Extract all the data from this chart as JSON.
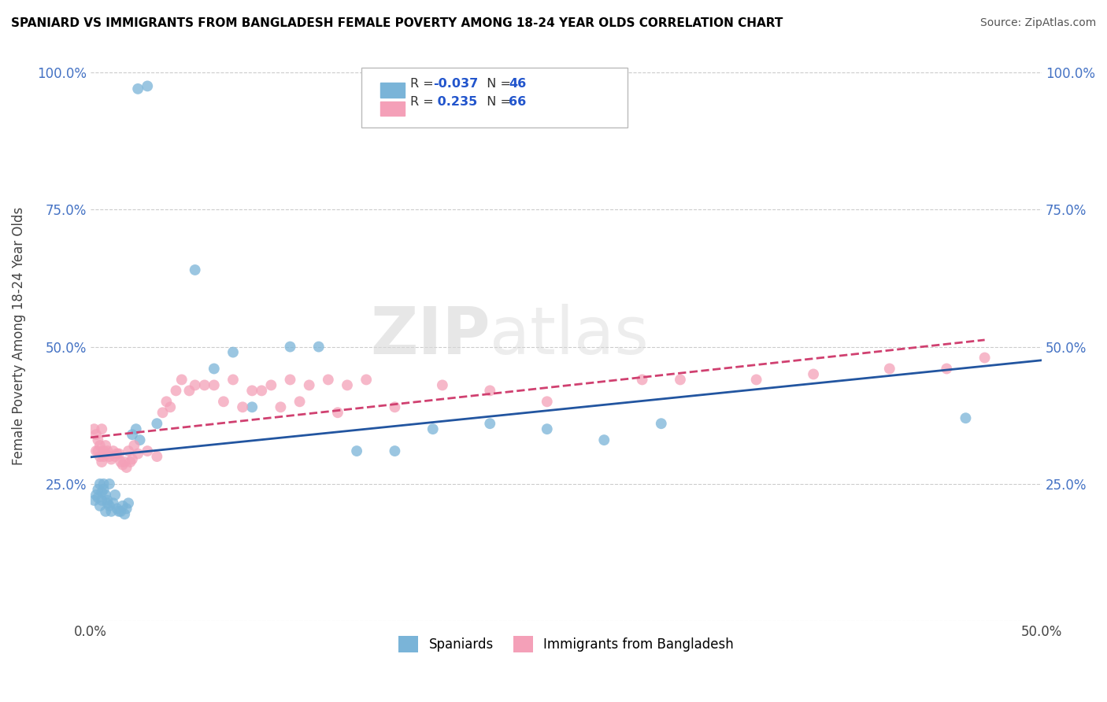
{
  "title": "SPANIARD VS IMMIGRANTS FROM BANGLADESH FEMALE POVERTY AMONG 18-24 YEAR OLDS CORRELATION CHART",
  "source": "Source: ZipAtlas.com",
  "ylabel": "Female Poverty Among 18-24 Year Olds",
  "xlim": [
    0.0,
    0.5
  ],
  "ylim": [
    0.0,
    1.04
  ],
  "color_blue": "#7ab4d8",
  "color_pink": "#f4a0b8",
  "line_blue": "#2255a0",
  "line_pink": "#d04070",
  "watermark_zip": "ZIP",
  "watermark_atlas": "atlas",
  "spaniards_x": [
    0.002,
    0.003,
    0.004,
    0.004,
    0.005,
    0.005,
    0.006,
    0.006,
    0.007,
    0.007,
    0.008,
    0.008,
    0.009,
    0.009,
    0.01,
    0.01,
    0.011,
    0.012,
    0.013,
    0.014,
    0.015,
    0.016,
    0.017,
    0.018,
    0.019,
    0.02,
    0.022,
    0.024,
    0.026,
    0.055,
    0.065,
    0.075,
    0.085,
    0.105,
    0.12,
    0.14,
    0.16,
    0.18,
    0.21,
    0.24,
    0.27,
    0.3,
    0.46,
    0.025,
    0.03,
    0.035
  ],
  "spaniards_y": [
    0.22,
    0.23,
    0.24,
    0.225,
    0.21,
    0.25,
    0.235,
    0.22,
    0.25,
    0.24,
    0.2,
    0.23,
    0.22,
    0.215,
    0.21,
    0.25,
    0.2,
    0.215,
    0.23,
    0.205,
    0.2,
    0.2,
    0.21,
    0.195,
    0.205,
    0.215,
    0.34,
    0.35,
    0.33,
    0.64,
    0.46,
    0.49,
    0.39,
    0.5,
    0.5,
    0.31,
    0.31,
    0.35,
    0.36,
    0.35,
    0.33,
    0.36,
    0.37,
    0.97,
    0.975,
    0.36
  ],
  "bangladesh_x": [
    0.002,
    0.003,
    0.003,
    0.004,
    0.004,
    0.005,
    0.005,
    0.006,
    0.006,
    0.007,
    0.007,
    0.008,
    0.008,
    0.009,
    0.01,
    0.011,
    0.012,
    0.013,
    0.014,
    0.015,
    0.016,
    0.017,
    0.018,
    0.019,
    0.02,
    0.021,
    0.022,
    0.023,
    0.025,
    0.03,
    0.035,
    0.038,
    0.04,
    0.042,
    0.045,
    0.048,
    0.052,
    0.06,
    0.07,
    0.08,
    0.09,
    0.1,
    0.11,
    0.13,
    0.16,
    0.185,
    0.21,
    0.24,
    0.29,
    0.31,
    0.35,
    0.38,
    0.42,
    0.45,
    0.47,
    0.055,
    0.065,
    0.075,
    0.085,
    0.095,
    0.105,
    0.115,
    0.125,
    0.135,
    0.145
  ],
  "bangladesh_y": [
    0.35,
    0.34,
    0.31,
    0.31,
    0.33,
    0.3,
    0.32,
    0.29,
    0.35,
    0.31,
    0.3,
    0.32,
    0.305,
    0.31,
    0.3,
    0.295,
    0.31,
    0.3,
    0.305,
    0.305,
    0.29,
    0.285,
    0.29,
    0.28,
    0.31,
    0.29,
    0.295,
    0.32,
    0.305,
    0.31,
    0.3,
    0.38,
    0.4,
    0.39,
    0.42,
    0.44,
    0.42,
    0.43,
    0.4,
    0.39,
    0.42,
    0.39,
    0.4,
    0.38,
    0.39,
    0.43,
    0.42,
    0.4,
    0.44,
    0.44,
    0.44,
    0.45,
    0.46,
    0.46,
    0.48,
    0.43,
    0.43,
    0.44,
    0.42,
    0.43,
    0.44,
    0.43,
    0.44,
    0.43,
    0.44
  ]
}
